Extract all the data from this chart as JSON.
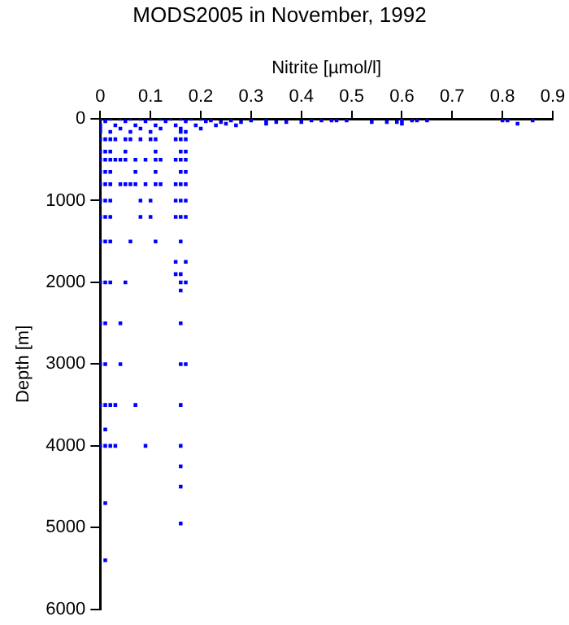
{
  "chart_data": {
    "type": "scatter",
    "title": "MODS2005 in November, 1992",
    "xlabel": "Nitrite [µmol/l]",
    "ylabel": "Depth [m]",
    "xlim": [
      0,
      0.9
    ],
    "xticks": [
      0,
      0.1,
      0.2,
      0.3,
      0.4,
      0.5,
      0.6,
      0.7,
      0.8,
      0.9
    ],
    "ylim": [
      6000,
      0
    ],
    "yticks": [
      0,
      1000,
      2000,
      3000,
      4000,
      5000,
      6000
    ],
    "grid": false,
    "legend": false,
    "marker": "square",
    "series": [
      {
        "color": "#0000ff",
        "x": [
          0,
          0.02,
          0.04,
          0.06,
          0.08,
          0.1,
          0.12,
          0.14,
          0.16,
          0.18,
          0.2,
          0.22,
          0.26,
          0.3,
          0.33,
          0.42,
          0.44,
          0.46,
          0.47,
          0.49,
          0.6,
          0.62,
          0.63,
          0.65,
          0.8,
          0.81,
          0.86,
          0.24,
          0.28,
          0.35,
          0.37,
          0.4,
          0.54,
          0.57,
          0.59,
          0.25,
          0.33,
          0.6,
          0.83,
          0.01,
          0.05,
          0.09,
          0.13,
          0.17,
          0.21,
          0,
          0.03,
          0.07,
          0.11,
          0.15,
          0.19,
          0.23,
          0.27,
          0,
          0.04,
          0.08,
          0.12,
          0.16,
          0.2,
          0,
          0.02,
          0.06,
          0.1,
          0.16,
          0.17,
          0,
          0.01,
          0.02,
          0.03,
          0.05,
          0.06,
          0.08,
          0.1,
          0.11,
          0.15,
          0.16,
          0.17,
          0,
          0.01,
          0.02,
          0.05,
          0.11,
          0.16,
          0.17,
          0,
          0.01,
          0.02,
          0.03,
          0.04,
          0.05,
          0.07,
          0.09,
          0.11,
          0.12,
          0.15,
          0.16,
          0.17,
          0,
          0.01,
          0.02,
          0.07,
          0.11,
          0.16,
          0.17,
          0,
          0.01,
          0.02,
          0.04,
          0.05,
          0.06,
          0.07,
          0.09,
          0.11,
          0.12,
          0.15,
          0.16,
          0.17,
          0,
          0.01,
          0.02,
          0.08,
          0.1,
          0.15,
          0.16,
          0.17,
          0,
          0.01,
          0.02,
          0.08,
          0.1,
          0.15,
          0.16,
          0.17,
          0,
          0.01,
          0.02,
          0.06,
          0.11,
          0.16,
          0.15,
          0.17,
          0.15,
          0.16,
          0,
          0.01,
          0.02,
          0.05,
          0.16,
          0.17,
          0.16,
          0,
          0.01,
          0.04,
          0.16,
          0,
          0.01,
          0.04,
          0.16,
          0.17,
          0,
          0.01,
          0.02,
          0.03,
          0.07,
          0.16,
          0.01,
          0,
          0.01,
          0.02,
          0.03,
          0.09,
          0.16,
          0.16,
          0.16,
          0.01,
          0.16,
          0.01
        ],
        "values": [
          0,
          0,
          0,
          0,
          0,
          0,
          0,
          0,
          0,
          0,
          0,
          20,
          20,
          20,
          20,
          20,
          20,
          20,
          20,
          20,
          20,
          20,
          20,
          20,
          20,
          20,
          20,
          40,
          40,
          40,
          40,
          40,
          40,
          40,
          40,
          60,
          60,
          60,
          60,
          30,
          30,
          30,
          30,
          30,
          30,
          80,
          80,
          80,
          80,
          80,
          80,
          80,
          80,
          120,
          120,
          120,
          120,
          120,
          120,
          160,
          160,
          160,
          160,
          160,
          160,
          250,
          250,
          250,
          250,
          250,
          250,
          250,
          250,
          250,
          250,
          250,
          250,
          400,
          400,
          400,
          400,
          400,
          400,
          400,
          500,
          500,
          500,
          500,
          500,
          500,
          500,
          500,
          500,
          500,
          500,
          500,
          500,
          650,
          650,
          650,
          650,
          650,
          650,
          650,
          800,
          800,
          800,
          800,
          800,
          800,
          800,
          800,
          800,
          800,
          800,
          800,
          800,
          1000,
          1000,
          1000,
          1000,
          1000,
          1000,
          1000,
          1000,
          1200,
          1200,
          1200,
          1200,
          1200,
          1200,
          1200,
          1200,
          1500,
          1500,
          1500,
          1500,
          1500,
          1500,
          1750,
          1750,
          1900,
          1900,
          2000,
          2000,
          2000,
          2000,
          2000,
          2000,
          2100,
          2500,
          2500,
          2500,
          2500,
          3000,
          3000,
          3000,
          3000,
          3000,
          3500,
          3500,
          3500,
          3500,
          3500,
          3500,
          3800,
          4000,
          4000,
          4000,
          4000,
          4000,
          4000,
          4250,
          4500,
          4700,
          4950,
          5400
        ]
      }
    ]
  }
}
